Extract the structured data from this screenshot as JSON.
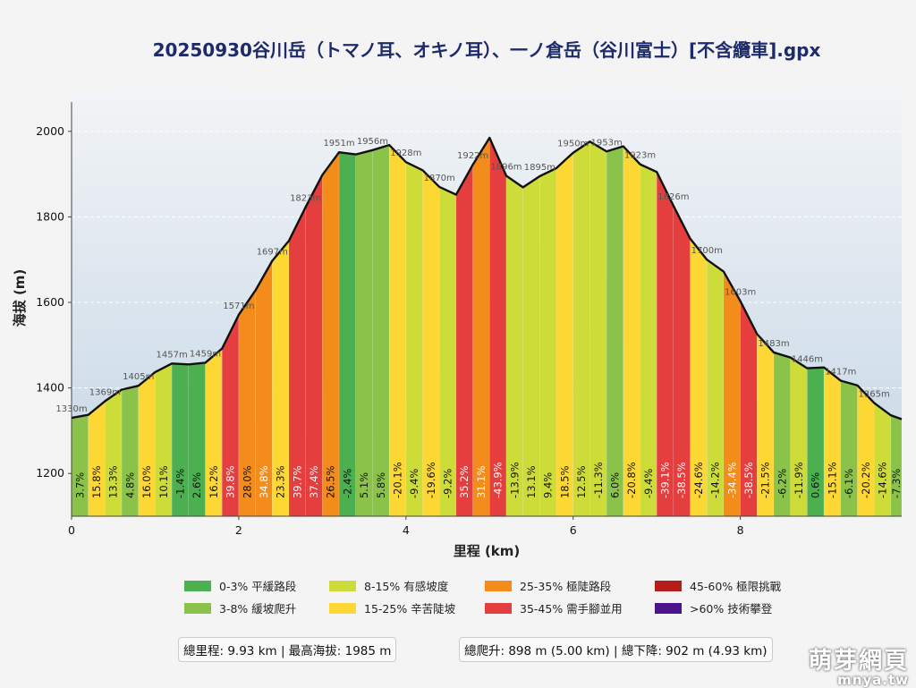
{
  "chart_data": {
    "type": "area",
    "title": "20250930谷川岳（トマノ耳、オキノ耳）、一ノ倉岳（谷川富士）[不含纜車].gpx",
    "xlabel": "里程 (km)",
    "ylabel": "海拔 (m)",
    "xlim": [
      0,
      9.93
    ],
    "ylim": [
      1100,
      2100
    ],
    "x_ticks": [
      "0",
      "2",
      "4",
      "6",
      "8"
    ],
    "x_tick_values": [
      0,
      2,
      4,
      6,
      8
    ],
    "y_ticks": [
      "1200",
      "1400",
      "1600",
      "1800",
      "2000"
    ],
    "y_tick_values": [
      1200,
      1400,
      1600,
      1800,
      2000
    ],
    "grid": true,
    "distance_km": [
      0,
      0.2,
      0.4,
      0.6,
      0.8,
      1.0,
      1.2,
      1.4,
      1.6,
      1.8,
      2.0,
      2.2,
      2.4,
      2.6,
      2.8,
      3.0,
      3.2,
      3.4,
      3.6,
      3.8,
      4.0,
      4.2,
      4.4,
      4.6,
      4.8,
      5.0,
      5.2,
      5.4,
      5.6,
      5.8,
      6.0,
      6.2,
      6.4,
      6.6,
      6.8,
      7.0,
      7.2,
      7.4,
      7.6,
      7.8,
      8.0,
      8.2,
      8.4,
      8.6,
      8.8,
      9.0,
      9.2,
      9.4,
      9.6,
      9.8,
      9.93
    ],
    "elevation_m": [
      1330,
      1337,
      1369,
      1396,
      1405,
      1437,
      1457,
      1455,
      1459,
      1492,
      1571,
      1628,
      1697,
      1744,
      1823,
      1898,
      1951,
      1946,
      1956,
      1968,
      1928,
      1909,
      1870,
      1852,
      1922,
      1985,
      1896,
      1869,
      1895,
      1914,
      1950,
      1976,
      1953,
      1965,
      1923,
      1905,
      1826,
      1749,
      1700,
      1672,
      1603,
      1526,
      1483,
      1471,
      1446,
      1448,
      1417,
      1406,
      1365,
      1336,
      1327
    ],
    "point_labels": [
      {
        "index": 0,
        "text": "1330m"
      },
      {
        "index": 2,
        "text": "1369m"
      },
      {
        "index": 4,
        "text": "1405m"
      },
      {
        "index": 6,
        "text": "1457m"
      },
      {
        "index": 8,
        "text": "1459m"
      },
      {
        "index": 10,
        "text": "1571m"
      },
      {
        "index": 12,
        "text": "1697m"
      },
      {
        "index": 14,
        "text": "1823m"
      },
      {
        "index": 16,
        "text": "1951m"
      },
      {
        "index": 18,
        "text": "1956m"
      },
      {
        "index": 20,
        "text": "1928m"
      },
      {
        "index": 22,
        "text": "1870m"
      },
      {
        "index": 24,
        "text": "1922m"
      },
      {
        "index": 26,
        "text": "1896m"
      },
      {
        "index": 28,
        "text": "1895m"
      },
      {
        "index": 30,
        "text": "1950m"
      },
      {
        "index": 32,
        "text": "1953m"
      },
      {
        "index": 34,
        "text": "1923m"
      },
      {
        "index": 36,
        "text": "1826m"
      },
      {
        "index": 38,
        "text": "1700m"
      },
      {
        "index": 40,
        "text": "1603m"
      },
      {
        "index": 42,
        "text": "1483m"
      },
      {
        "index": 44,
        "text": "1446m"
      },
      {
        "index": 46,
        "text": "1417m"
      },
      {
        "index": 48,
        "text": "1365m"
      }
    ],
    "segment_grades": [
      "3.7%",
      "15.8%",
      "13.3%",
      "4.8%",
      "16.0%",
      "10.1%",
      "-1.4%",
      "2.6%",
      "16.2%",
      "39.8%",
      "28.0%",
      "34.8%",
      "23.3%",
      "39.7%",
      "37.4%",
      "26.5%",
      "-2.4%",
      "5.1%",
      "5.8%",
      "-20.1%",
      "-9.4%",
      "-19.6%",
      "-9.2%",
      "35.2%",
      "31.1%",
      "-43.9%",
      "-13.9%",
      "13.1%",
      "9.4%",
      "18.5%",
      "12.5%",
      "-11.3%",
      "6.0%",
      "-20.8%",
      "-9.4%",
      "-39.1%",
      "-38.5%",
      "-24.6%",
      "-14.2%",
      "-34.4%",
      "-38.5%",
      "-21.5%",
      "-6.2%",
      "-11.9%",
      "0.6%",
      "-15.1%",
      "-6.1%",
      "-20.2%",
      "-14.6%",
      "-7.3%"
    ],
    "legend_placement": "bottom",
    "legend": [
      {
        "label": "0-3% 平緩路段",
        "color": "#4caf50",
        "max": 3
      },
      {
        "label": "3-8% 緩坡爬升",
        "color": "#8bc34a",
        "max": 8
      },
      {
        "label": "8-15% 有感坡度",
        "color": "#cddc39",
        "max": 15
      },
      {
        "label": "15-25% 辛苦陡坡",
        "color": "#fdd835",
        "max": 25
      },
      {
        "label": "25-35% 極陡路段",
        "color": "#f48c1b",
        "max": 35
      },
      {
        "label": "35-45% 需手腳並用",
        "color": "#e53e3e",
        "max": 45
      },
      {
        "label": "45-60% 極限挑戰",
        "color": "#b71c1c",
        "max": 60
      },
      {
        "label": ">60% 技術攀登",
        "color": "#4a148c",
        "max": 1000
      }
    ]
  },
  "stats": {
    "left": "總里程: 9.93 km | 最高海拔: 1985 m",
    "right": "總爬升: 898 m (5.00 km) | 總下降: 902 m (4.93 km)"
  },
  "watermark": {
    "name": "萌芽網頁",
    "url": "mnya.tw"
  }
}
